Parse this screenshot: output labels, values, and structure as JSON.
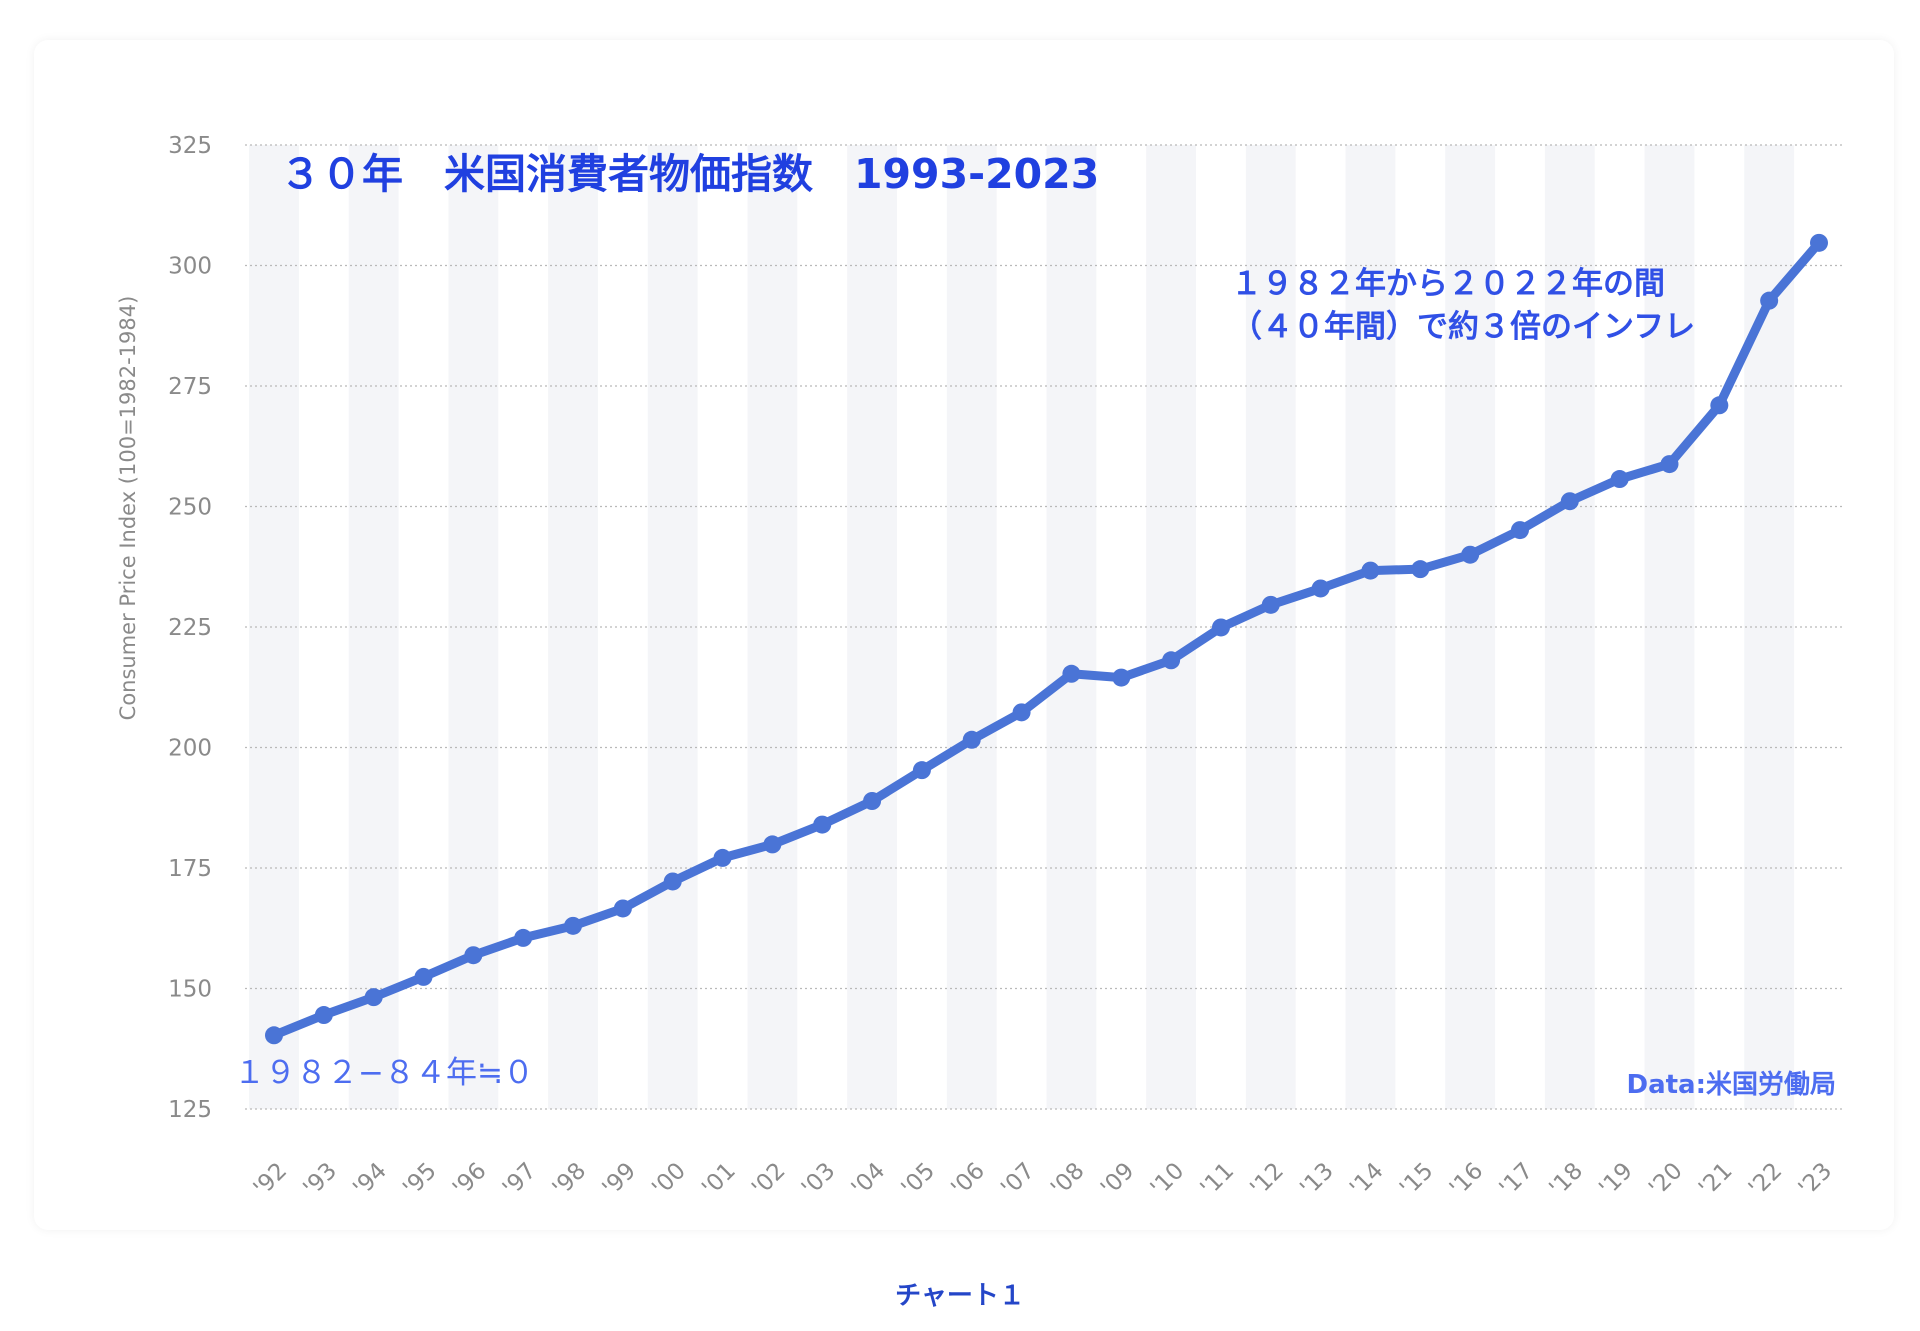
{
  "caption": "チャート１",
  "colors": {
    "line": "#4a74d6",
    "title": "#2040e0",
    "annotation": "#3050e6"
  },
  "chart_data": {
    "type": "line",
    "title": "３０年　米国消費者物価指数　1993-2023",
    "ylabel": "Consumer Price Index (100=1982-1984)",
    "xlabel": "",
    "ylim": [
      125,
      325
    ],
    "yticks": [
      125,
      150,
      175,
      200,
      225,
      250,
      275,
      300,
      325
    ],
    "grid": true,
    "categories": [
      "'92",
      "'93",
      "'94",
      "'95",
      "'96",
      "'97",
      "'98",
      "'99",
      "'00",
      "'01",
      "'02",
      "'03",
      "'04",
      "'05",
      "'06",
      "'07",
      "'08",
      "'09",
      "'10",
      "'11",
      "'12",
      "'13",
      "'14",
      "'15",
      "'16",
      "'17",
      "'18",
      "'19",
      "'20",
      "'21",
      "'22",
      "'23"
    ],
    "values": [
      140.3,
      144.5,
      148.2,
      152.4,
      156.9,
      160.5,
      163.0,
      166.6,
      172.2,
      177.1,
      179.9,
      184.0,
      188.9,
      195.3,
      201.6,
      207.3,
      215.3,
      214.5,
      218.1,
      224.9,
      229.6,
      233.0,
      236.7,
      237.0,
      240.0,
      245.1,
      251.1,
      255.7,
      258.8,
      271.0,
      292.7,
      304.7
    ],
    "annotations": {
      "upper_line1": "１９８２年から２０２２年の間",
      "upper_line2": "（４０年間）で約３倍のインフレ",
      "baseline": "１９８２−８４年≒０",
      "source": "Data:米国労働局"
    }
  }
}
